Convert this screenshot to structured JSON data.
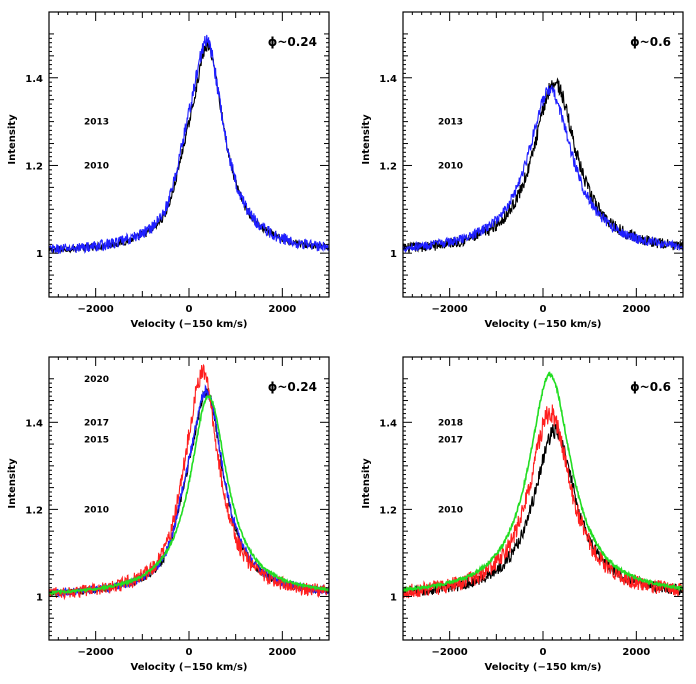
{
  "chart_data": [
    {
      "type": "line",
      "phase_label": "ϕ~0.24",
      "xlabel": "Velocity (−150 km/s)",
      "ylabel": "Intensity",
      "xlim": [
        -3000,
        3000
      ],
      "ylim": [
        0.9,
        1.55
      ],
      "xticks": [
        -2000,
        0,
        2000
      ],
      "xtick_labels": [
        "−2000",
        "0",
        "2000"
      ],
      "yticks": [
        1,
        1.2,
        1.4
      ],
      "ytick_labels": [
        "1",
        "1.2",
        "1.4"
      ],
      "year_labels": [
        {
          "text": "2013",
          "y": 1.3
        },
        {
          "text": "2010",
          "y": 1.2
        }
      ],
      "series": [
        {
          "name": "2010",
          "color": "#000000",
          "peak": 1.47,
          "center": 400,
          "width": 700,
          "noise": 0.012,
          "shoulder": 0.05
        },
        {
          "name": "2013",
          "color": "#1f1fff",
          "peak": 1.48,
          "center": 380,
          "width": 720,
          "noise": 0.018,
          "shoulder": 0.05
        }
      ]
    },
    {
      "type": "line",
      "phase_label": "ϕ~0.6",
      "xlabel": "Velocity (−150 km/s)",
      "ylabel": "Intensity",
      "xlim": [
        -3000,
        3000
      ],
      "ylim": [
        0.9,
        1.55
      ],
      "xticks": [
        -2000,
        0,
        2000
      ],
      "xtick_labels": [
        "−2000",
        "0",
        "2000"
      ],
      "yticks": [
        1,
        1.2,
        1.4
      ],
      "ytick_labels": [
        "1",
        "1.2",
        "1.4"
      ],
      "year_labels": [
        {
          "text": "2013",
          "y": 1.3
        },
        {
          "text": "2010",
          "y": 1.2
        }
      ],
      "series": [
        {
          "name": "2010",
          "color": "#000000",
          "peak": 1.39,
          "center": 250,
          "width": 900,
          "noise": 0.018,
          "shoulder": 0.0
        },
        {
          "name": "2013",
          "color": "#1f1fff",
          "peak": 1.37,
          "center": 150,
          "width": 950,
          "noise": 0.015,
          "shoulder": 0.0
        }
      ]
    },
    {
      "type": "line",
      "phase_label": "ϕ~0.24",
      "xlabel": "Velocity (−150 km/s)",
      "ylabel": "Intensity",
      "xlim": [
        -3000,
        3000
      ],
      "ylim": [
        0.9,
        1.55
      ],
      "xticks": [
        -2000,
        0,
        2000
      ],
      "xtick_labels": [
        "−2000",
        "0",
        "2000"
      ],
      "yticks": [
        1,
        1.2,
        1.4
      ],
      "ytick_labels": [
        "1",
        "1.2",
        "1.4"
      ],
      "year_labels": [
        {
          "text": "2020",
          "y": 1.5
        },
        {
          "text": "2017",
          "y": 1.4
        },
        {
          "text": "2015",
          "y": 1.36
        },
        {
          "text": "2010",
          "y": 1.2
        }
      ],
      "series": [
        {
          "name": "2010",
          "color": "#000000",
          "peak": 1.47,
          "center": 380,
          "width": 700,
          "noise": 0.012,
          "shoulder": 0.05
        },
        {
          "name": "2015",
          "color": "#1f1fff",
          "peak": 1.47,
          "center": 380,
          "width": 720,
          "noise": 0.014,
          "shoulder": 0.05
        },
        {
          "name": "2017",
          "color": "#ff1f1f",
          "peak": 1.51,
          "center": 300,
          "width": 680,
          "noise": 0.022,
          "shoulder": 0.04
        },
        {
          "name": "2020",
          "color": "#22dd22",
          "peak": 1.46,
          "center": 420,
          "width": 780,
          "noise": 0.004,
          "shoulder": 0.0
        }
      ]
    },
    {
      "type": "line",
      "phase_label": "ϕ~0.6",
      "xlabel": "Velocity (−150 km/s)",
      "ylabel": "Intensity",
      "xlim": [
        -3000,
        3000
      ],
      "ylim": [
        0.9,
        1.55
      ],
      "xticks": [
        -2000,
        0,
        2000
      ],
      "xtick_labels": [
        "−2000",
        "0",
        "2000"
      ],
      "yticks": [
        1,
        1.2,
        1.4
      ],
      "ytick_labels": [
        "1",
        "1.2",
        "1.4"
      ],
      "year_labels": [
        {
          "text": "2018",
          "y": 1.4
        },
        {
          "text": "2017",
          "y": 1.36
        },
        {
          "text": "2010",
          "y": 1.2
        }
      ],
      "series": [
        {
          "name": "2010",
          "color": "#000000",
          "peak": 1.38,
          "center": 250,
          "width": 880,
          "noise": 0.018,
          "shoulder": 0.0
        },
        {
          "name": "2017",
          "color": "#ff1f1f",
          "peak": 1.42,
          "center": 150,
          "width": 880,
          "noise": 0.025,
          "shoulder": 0.0
        },
        {
          "name": "2018",
          "color": "#22dd22",
          "peak": 1.51,
          "center": 150,
          "width": 900,
          "noise": 0.005,
          "shoulder": 0.0
        }
      ]
    }
  ]
}
